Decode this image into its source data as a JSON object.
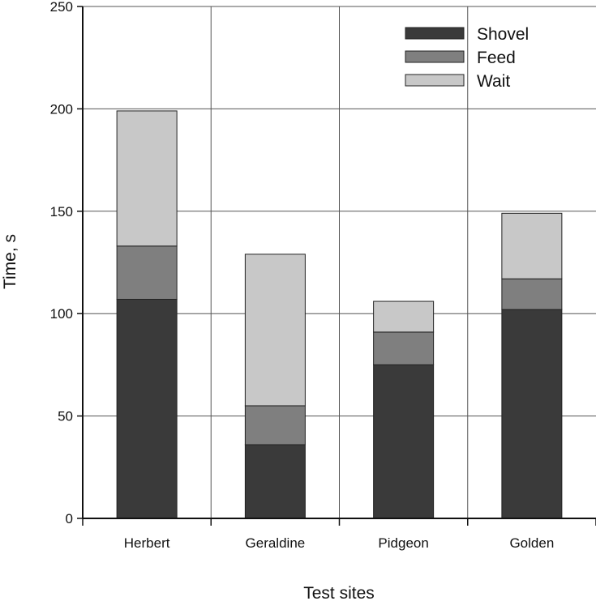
{
  "chart_data": {
    "type": "bar",
    "stacked": true,
    "title": "",
    "xlabel": "Test sites",
    "ylabel": "Time, s",
    "ylim": [
      0,
      250
    ],
    "yticks": [
      0,
      50,
      100,
      150,
      200,
      250
    ],
    "grid": true,
    "legend_position": "top-right",
    "categories": [
      "Herbert",
      "Geraldine",
      "Pidgeon",
      "Golden"
    ],
    "series": [
      {
        "name": "Shovel",
        "color": "#3a3a3a",
        "values": [
          107,
          36,
          75,
          102
        ]
      },
      {
        "name": "Feed",
        "color": "#7f7f7f",
        "values": [
          26,
          19,
          16,
          15
        ]
      },
      {
        "name": "Wait",
        "color": "#c8c8c8",
        "values": [
          66,
          74,
          15,
          32
        ]
      }
    ]
  }
}
